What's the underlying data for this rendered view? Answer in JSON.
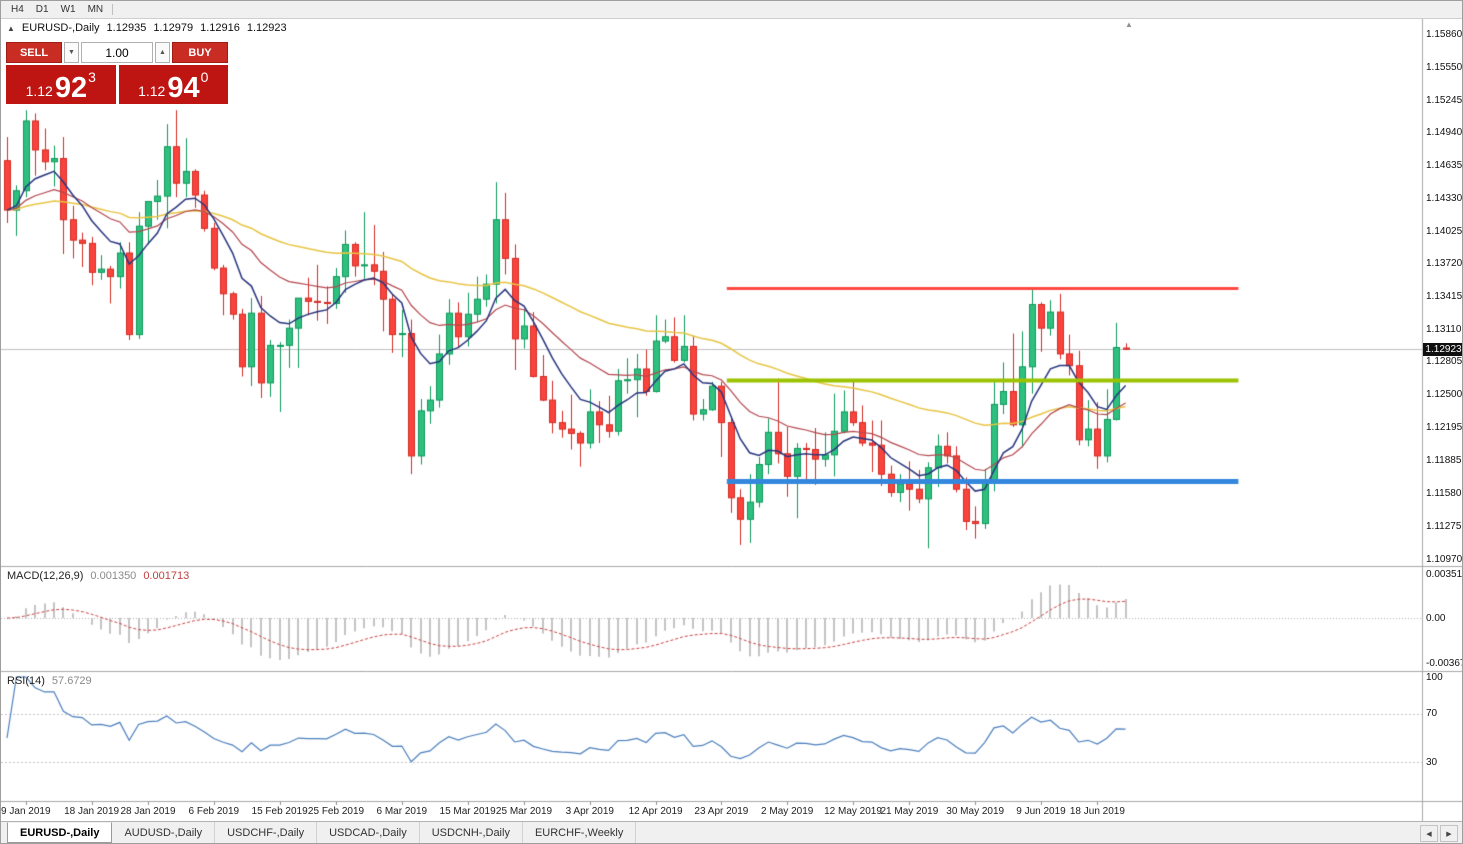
{
  "toolbar": {
    "timeframes": [
      "H4",
      "D1",
      "W1",
      "MN"
    ]
  },
  "icons": {
    "panel_toggle": "▲",
    "volume_down": "▼",
    "volume_up": "▲",
    "tab_scroll_left": "◀",
    "tab_scroll_right": "▶",
    "shift_marker": "▲"
  },
  "chart_info": {
    "symbol_period": "EURUSD-,Daily",
    "open": "1.12935",
    "high": "1.12979",
    "low": "1.12916",
    "close": "1.12923"
  },
  "trade_panel": {
    "sell_label": "SELL",
    "buy_label": "BUY",
    "volume": "1.00",
    "sell_price": {
      "big_figure": "1.12",
      "pips": "92",
      "point": "3"
    },
    "buy_price": {
      "big_figure": "1.12",
      "pips": "94",
      "point": "0"
    }
  },
  "indicators": {
    "macd": {
      "label": "MACD(12,26,9)",
      "value": "0.001350",
      "signal_value": "0.001713",
      "scale": [
        "0.003518",
        "0.00",
        "-0.00367"
      ]
    },
    "rsi": {
      "label": "RSI(14)",
      "value": "57.6729",
      "scale": [
        "100",
        "70",
        "30"
      ]
    }
  },
  "price_scale": {
    "labels": [
      "1.15860",
      "1.15550",
      "1.15245",
      "1.14940",
      "1.14635",
      "1.14330",
      "1.14025",
      "1.13720",
      "1.13415",
      "1.13110",
      "1.12805",
      "1.12500",
      "1.12195",
      "1.11885",
      "1.11580",
      "1.11275",
      "1.10970"
    ],
    "current": "1.12923"
  },
  "time_axis": {
    "labels": [
      {
        "text": "9 Jan 2019",
        "index": 2
      },
      {
        "text": "18 Jan 2019",
        "index": 9
      },
      {
        "text": "28 Jan 2019",
        "index": 15
      },
      {
        "text": "6 Feb 2019",
        "index": 22
      },
      {
        "text": "15 Feb 2019",
        "index": 29
      },
      {
        "text": "25 Feb 2019",
        "index": 35
      },
      {
        "text": "6 Mar 2019",
        "index": 42
      },
      {
        "text": "15 Mar 2019",
        "index": 49
      },
      {
        "text": "25 Mar 2019",
        "index": 55
      },
      {
        "text": "3 Apr 2019",
        "index": 62
      },
      {
        "text": "12 Apr 2019",
        "index": 69
      },
      {
        "text": "23 Apr 2019",
        "index": 76
      },
      {
        "text": "2 May 2019",
        "index": 83
      },
      {
        "text": "12 May 2019",
        "index": 90
      },
      {
        "text": "21 May 2019",
        "index": 96
      },
      {
        "text": "30 May 2019",
        "index": 103
      },
      {
        "text": "9 Jun 2019",
        "index": 110
      },
      {
        "text": "18 Jun 2019",
        "index": 116
      }
    ]
  },
  "tabbar": {
    "tabs": [
      {
        "label": "EURUSD-,Daily",
        "active": true
      },
      {
        "label": "AUDUSD-,Daily",
        "active": false
      },
      {
        "label": "USDCHF-,Daily",
        "active": false
      },
      {
        "label": "USDCAD-,Daily",
        "active": false
      },
      {
        "label": "USDCNH-,Daily",
        "active": false
      },
      {
        "label": "EURCHF-,Weekly",
        "active": false
      }
    ]
  },
  "chart_data": {
    "type": "candlestick",
    "symbol": "EURUSD-",
    "timeframe": "Daily",
    "price_axis": {
      "max": 1.1586,
      "min": 1.1097
    },
    "ohlc": [
      [
        1.1468,
        1.149,
        1.141,
        1.1422
      ],
      [
        1.1422,
        1.1445,
        1.1398,
        1.144
      ],
      [
        1.144,
        1.1515,
        1.1434,
        1.1505
      ],
      [
        1.1505,
        1.1512,
        1.1454,
        1.1478
      ],
      [
        1.1478,
        1.1498,
        1.1459,
        1.1467
      ],
      [
        1.1467,
        1.1482,
        1.1444,
        1.147
      ],
      [
        1.147,
        1.149,
        1.1381,
        1.1413
      ],
      [
        1.1413,
        1.1426,
        1.1377,
        1.1394
      ],
      [
        1.1394,
        1.1401,
        1.1369,
        1.1391
      ],
      [
        1.1391,
        1.1397,
        1.1352,
        1.1364
      ],
      [
        1.1364,
        1.138,
        1.1357,
        1.1367
      ],
      [
        1.1367,
        1.137,
        1.1335,
        1.136
      ],
      [
        1.136,
        1.1392,
        1.1349,
        1.1382
      ],
      [
        1.1382,
        1.1392,
        1.1301,
        1.1306
      ],
      [
        1.1306,
        1.142,
        1.1302,
        1.1407
      ],
      [
        1.1407,
        1.143,
        1.139,
        1.143
      ],
      [
        1.143,
        1.145,
        1.1413,
        1.1435
      ],
      [
        1.1435,
        1.1502,
        1.1405,
        1.1481
      ],
      [
        1.1481,
        1.1515,
        1.1434,
        1.1447
      ],
      [
        1.1447,
        1.1489,
        1.1434,
        1.1458
      ],
      [
        1.1458,
        1.146,
        1.1424,
        1.1436
      ],
      [
        1.1436,
        1.144,
        1.1402,
        1.1405
      ],
      [
        1.1405,
        1.141,
        1.1366,
        1.1368
      ],
      [
        1.1368,
        1.1371,
        1.1324,
        1.1344
      ],
      [
        1.1344,
        1.1346,
        1.132,
        1.1325
      ],
      [
        1.1325,
        1.133,
        1.1267,
        1.1276
      ],
      [
        1.1276,
        1.134,
        1.1258,
        1.1326
      ],
      [
        1.1326,
        1.1342,
        1.1247,
        1.1261
      ],
      [
        1.1261,
        1.1301,
        1.1248,
        1.1296
      ],
      [
        1.1296,
        1.1299,
        1.1234,
        1.1296
      ],
      [
        1.1296,
        1.132,
        1.1275,
        1.1312
      ],
      [
        1.1312,
        1.134,
        1.1275,
        1.134
      ],
      [
        1.134,
        1.1359,
        1.1324,
        1.1337
      ],
      [
        1.1337,
        1.1371,
        1.1319,
        1.1336
      ],
      [
        1.1336,
        1.1351,
        1.1316,
        1.1335
      ],
      [
        1.1335,
        1.1368,
        1.133,
        1.136
      ],
      [
        1.136,
        1.1403,
        1.1345,
        1.139
      ],
      [
        1.139,
        1.1392,
        1.136,
        1.137
      ],
      [
        1.137,
        1.142,
        1.1358,
        1.1371
      ],
      [
        1.1371,
        1.1408,
        1.1352,
        1.1365
      ],
      [
        1.1365,
        1.1383,
        1.1309,
        1.1339
      ],
      [
        1.1339,
        1.1344,
        1.1289,
        1.1306
      ],
      [
        1.1306,
        1.1329,
        1.1285,
        1.1307
      ],
      [
        1.1307,
        1.132,
        1.1176,
        1.1193
      ],
      [
        1.1193,
        1.1246,
        1.1185,
        1.1235
      ],
      [
        1.1235,
        1.1258,
        1.1223,
        1.1245
      ],
      [
        1.1245,
        1.1306,
        1.1238,
        1.1288
      ],
      [
        1.1288,
        1.1339,
        1.1278,
        1.1326
      ],
      [
        1.1326,
        1.1336,
        1.1294,
        1.1304
      ],
      [
        1.1304,
        1.1345,
        1.1295,
        1.1325
      ],
      [
        1.1325,
        1.136,
        1.1318,
        1.1339
      ],
      [
        1.1339,
        1.1362,
        1.1332,
        1.1353
      ],
      [
        1.1353,
        1.1448,
        1.1335,
        1.1413
      ],
      [
        1.1413,
        1.1438,
        1.1362,
        1.1377
      ],
      [
        1.1377,
        1.139,
        1.1273,
        1.1302
      ],
      [
        1.1302,
        1.133,
        1.1293,
        1.1314
      ],
      [
        1.1314,
        1.1327,
        1.1266,
        1.1267
      ],
      [
        1.1267,
        1.1287,
        1.1244,
        1.1245
      ],
      [
        1.1245,
        1.1263,
        1.1214,
        1.1224
      ],
      [
        1.1224,
        1.1235,
        1.121,
        1.1218
      ],
      [
        1.1218,
        1.125,
        1.1199,
        1.1214
      ],
      [
        1.1214,
        1.1216,
        1.1183,
        1.1205
      ],
      [
        1.1205,
        1.1255,
        1.12,
        1.1234
      ],
      [
        1.1234,
        1.1244,
        1.1205,
        1.1222
      ],
      [
        1.1222,
        1.1249,
        1.121,
        1.1216
      ],
      [
        1.1216,
        1.1274,
        1.1212,
        1.1263
      ],
      [
        1.1263,
        1.1284,
        1.1251,
        1.1264
      ],
      [
        1.1264,
        1.1288,
        1.1229,
        1.1274
      ],
      [
        1.1274,
        1.1292,
        1.1249,
        1.1253
      ],
      [
        1.1253,
        1.1324,
        1.1252,
        1.13
      ],
      [
        1.13,
        1.132,
        1.1298,
        1.1304
      ],
      [
        1.1304,
        1.1322,
        1.128,
        1.1282
      ],
      [
        1.1282,
        1.1324,
        1.128,
        1.1295
      ],
      [
        1.1295,
        1.1305,
        1.1226,
        1.1232
      ],
      [
        1.1232,
        1.1246,
        1.1226,
        1.1236
      ],
      [
        1.1236,
        1.1262,
        1.1235,
        1.1258
      ],
      [
        1.1258,
        1.1262,
        1.1192,
        1.1224
      ],
      [
        1.1224,
        1.123,
        1.114,
        1.1154
      ],
      [
        1.1154,
        1.1162,
        1.111,
        1.1134
      ],
      [
        1.1134,
        1.1176,
        1.1112,
        1.115
      ],
      [
        1.115,
        1.1192,
        1.1145,
        1.1185
      ],
      [
        1.1185,
        1.1228,
        1.1176,
        1.1215
      ],
      [
        1.1215,
        1.1265,
        1.1186,
        1.1195
      ],
      [
        1.1195,
        1.122,
        1.1155,
        1.1174
      ],
      [
        1.1174,
        1.1205,
        1.1135,
        1.12
      ],
      [
        1.12,
        1.1205,
        1.1167,
        1.1199
      ],
      [
        1.1199,
        1.1219,
        1.1166,
        1.119
      ],
      [
        1.119,
        1.1215,
        1.1183,
        1.1194
      ],
      [
        1.1194,
        1.1251,
        1.1174,
        1.1216
      ],
      [
        1.1216,
        1.1254,
        1.1214,
        1.1234
      ],
      [
        1.1234,
        1.1264,
        1.1221,
        1.1224
      ],
      [
        1.1224,
        1.124,
        1.1202,
        1.1205
      ],
      [
        1.1205,
        1.1226,
        1.1178,
        1.1203
      ],
      [
        1.1203,
        1.1226,
        1.1165,
        1.1176
      ],
      [
        1.1176,
        1.1184,
        1.1155,
        1.1159
      ],
      [
        1.1159,
        1.1176,
        1.115,
        1.1167
      ],
      [
        1.1167,
        1.1188,
        1.1142,
        1.1162
      ],
      [
        1.1162,
        1.118,
        1.1149,
        1.1153
      ],
      [
        1.1153,
        1.1187,
        1.1107,
        1.1182
      ],
      [
        1.1182,
        1.1213,
        1.1164,
        1.1202
      ],
      [
        1.1202,
        1.1215,
        1.1186,
        1.1193
      ],
      [
        1.1193,
        1.1202,
        1.1159,
        1.1162
      ],
      [
        1.1162,
        1.1173,
        1.1124,
        1.1132
      ],
      [
        1.1132,
        1.1146,
        1.1116,
        1.113
      ],
      [
        1.113,
        1.1181,
        1.1125,
        1.1168
      ],
      [
        1.1168,
        1.1263,
        1.116,
        1.1241
      ],
      [
        1.1241,
        1.128,
        1.1232,
        1.1253
      ],
      [
        1.1253,
        1.1307,
        1.122,
        1.1222
      ],
      [
        1.1222,
        1.1309,
        1.1201,
        1.1276
      ],
      [
        1.1276,
        1.1348,
        1.1251,
        1.1334
      ],
      [
        1.1334,
        1.1336,
        1.129,
        1.1312
      ],
      [
        1.1312,
        1.1338,
        1.1305,
        1.1327
      ],
      [
        1.1327,
        1.1344,
        1.1283,
        1.1288
      ],
      [
        1.1288,
        1.1306,
        1.1268,
        1.1277
      ],
      [
        1.1277,
        1.1291,
        1.1203,
        1.1208
      ],
      [
        1.1208,
        1.1245,
        1.1202,
        1.1218
      ],
      [
        1.1218,
        1.1243,
        1.1181,
        1.1193
      ],
      [
        1.1193,
        1.1255,
        1.1187,
        1.1227
      ],
      [
        1.1227,
        1.1317,
        1.1226,
        1.1294
      ],
      [
        1.12935,
        1.12979,
        1.12916,
        1.12923
      ]
    ],
    "levels": [
      {
        "name": "resistance-line",
        "price": 1.1349,
        "color": "#FF4A43",
        "thickness": 3,
        "from_index": 77,
        "to_index": 131
      },
      {
        "name": "mid-support-line",
        "price": 1.1264,
        "color": "#9CC300",
        "thickness": 4,
        "from_index": 77,
        "to_index": 131
      },
      {
        "name": "support-line",
        "price": 1.117,
        "color": "#3388DD",
        "thickness": 5,
        "from_index": 77,
        "to_index": 131
      }
    ],
    "moving_averages": [
      {
        "period": 55,
        "method": "ema",
        "color": "#E8C544",
        "width": 1.5
      },
      {
        "period": 21,
        "method": "ema",
        "color": "#B4484F",
        "width": 1.2
      },
      {
        "period": 8,
        "method": "ema",
        "color": "#28357E",
        "width": 1.5
      }
    ],
    "macd": {
      "fast": 12,
      "slow": 26,
      "signal": 9
    },
    "rsi": {
      "period": 14,
      "levels": [
        70,
        30
      ]
    },
    "colors": {
      "bull": "#2FBF7F",
      "bull_border": "#0E9A5C",
      "bear": "#F8443C",
      "bear_border": "#D52B24",
      "background": "#FFFFFF",
      "current_price_line": "#C0C0C0",
      "histogram": "#C4C4C4",
      "macd_signal": "#CC4444",
      "rsi_line": "#4C7FBE",
      "separator": "#A8A8A8"
    }
  }
}
